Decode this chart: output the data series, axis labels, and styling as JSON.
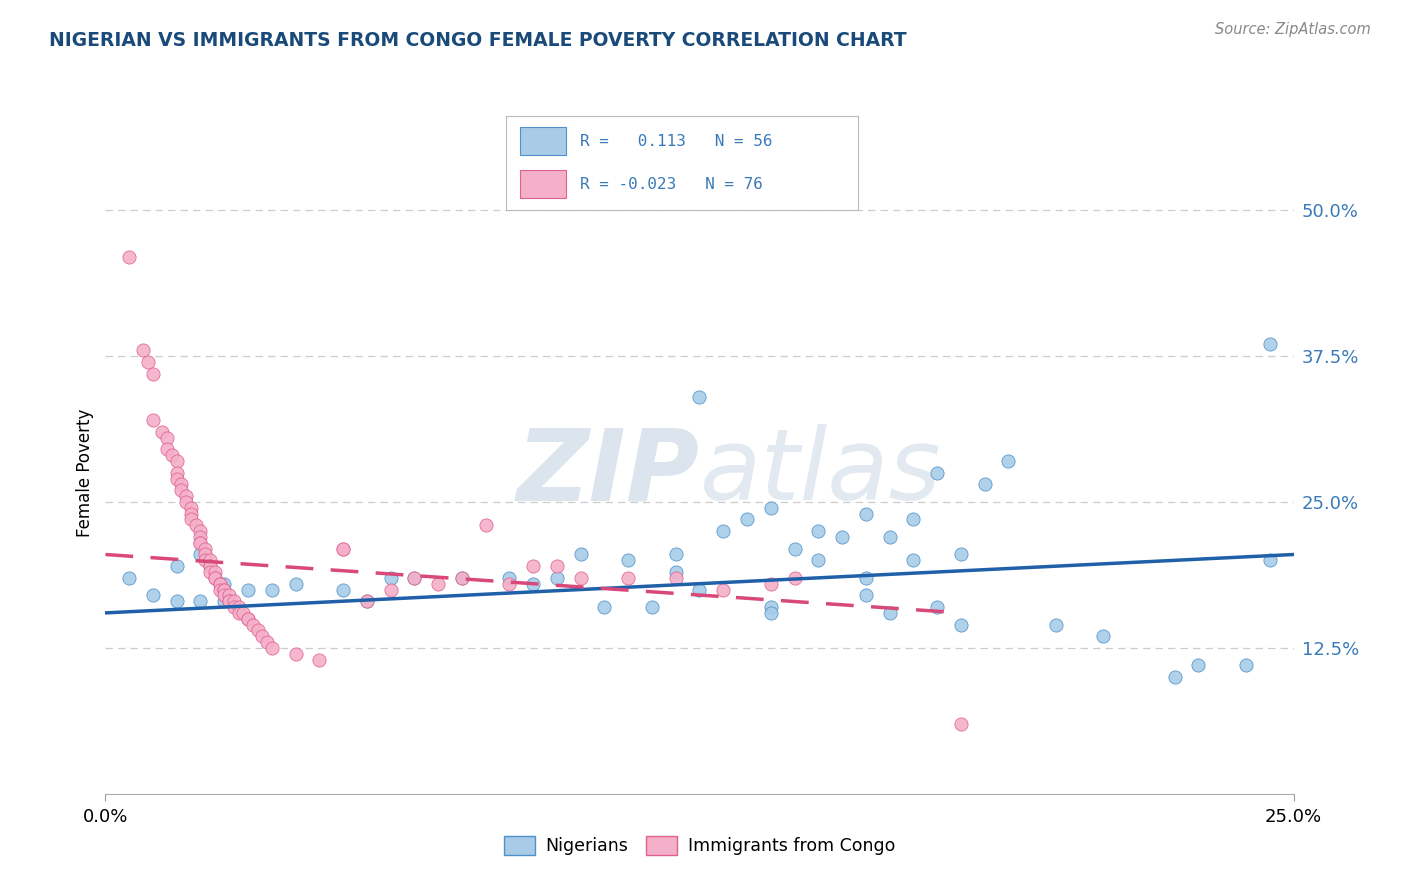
{
  "title": "NIGERIAN VS IMMIGRANTS FROM CONGO FEMALE POVERTY CORRELATION CHART",
  "source": "Source: ZipAtlas.com",
  "ylabel": "Female Poverty",
  "legend_bottom_blue": "Nigerians",
  "legend_bottom_pink": "Immigrants from Congo",
  "blue_color": "#a8cce8",
  "pink_color": "#f4b0c8",
  "blue_edge_color": "#5090c8",
  "pink_edge_color": "#e06090",
  "blue_line_color": "#2060a8",
  "pink_line_color": "#d84878",
  "label_color": "#3a7ab8",
  "watermark_color": "#c8d8e8",
  "blue_scatter": [
    [
      0.5,
      18.5
    ],
    [
      1.0,
      17.0
    ],
    [
      1.5,
      19.5
    ],
    [
      2.0,
      20.5
    ],
    [
      2.5,
      18.0
    ],
    [
      1.5,
      16.5
    ],
    [
      3.0,
      17.5
    ],
    [
      2.0,
      16.5
    ],
    [
      2.5,
      16.5
    ],
    [
      3.5,
      17.5
    ],
    [
      4.0,
      18.0
    ],
    [
      5.0,
      17.5
    ],
    [
      5.5,
      16.5
    ],
    [
      6.0,
      18.5
    ],
    [
      6.5,
      18.5
    ],
    [
      7.5,
      18.5
    ],
    [
      8.5,
      18.5
    ],
    [
      9.0,
      18.0
    ],
    [
      9.5,
      18.5
    ],
    [
      10.0,
      20.5
    ],
    [
      11.0,
      20.0
    ],
    [
      12.0,
      20.5
    ],
    [
      12.5,
      34.0
    ],
    [
      13.0,
      22.5
    ],
    [
      14.0,
      24.5
    ],
    [
      15.0,
      22.5
    ],
    [
      16.0,
      24.0
    ],
    [
      17.0,
      23.5
    ],
    [
      15.5,
      22.0
    ],
    [
      16.5,
      22.0
    ],
    [
      17.5,
      27.5
    ],
    [
      18.5,
      26.5
    ],
    [
      19.0,
      28.5
    ],
    [
      14.5,
      21.0
    ],
    [
      13.5,
      23.5
    ],
    [
      15.0,
      20.0
    ],
    [
      16.0,
      18.5
    ],
    [
      17.0,
      20.0
    ],
    [
      18.0,
      20.5
    ],
    [
      12.0,
      19.0
    ],
    [
      10.5,
      16.0
    ],
    [
      11.5,
      16.0
    ],
    [
      12.5,
      17.5
    ],
    [
      14.0,
      16.0
    ],
    [
      16.0,
      17.0
    ],
    [
      17.5,
      16.0
    ],
    [
      14.0,
      15.5
    ],
    [
      16.5,
      15.5
    ],
    [
      18.0,
      14.5
    ],
    [
      20.0,
      14.5
    ],
    [
      21.0,
      13.5
    ],
    [
      22.5,
      10.0
    ],
    [
      23.0,
      11.0
    ],
    [
      24.0,
      11.0
    ],
    [
      24.5,
      38.5
    ],
    [
      24.5,
      20.0
    ]
  ],
  "pink_scatter": [
    [
      0.5,
      46.0
    ],
    [
      0.8,
      38.0
    ],
    [
      0.9,
      37.0
    ],
    [
      1.0,
      36.0
    ],
    [
      1.0,
      32.0
    ],
    [
      1.2,
      31.0
    ],
    [
      1.3,
      30.5
    ],
    [
      1.3,
      29.5
    ],
    [
      1.4,
      29.0
    ],
    [
      1.5,
      28.5
    ],
    [
      1.5,
      27.5
    ],
    [
      1.5,
      27.0
    ],
    [
      1.6,
      26.5
    ],
    [
      1.6,
      26.0
    ],
    [
      1.7,
      25.5
    ],
    [
      1.7,
      25.0
    ],
    [
      1.8,
      24.5
    ],
    [
      1.8,
      24.0
    ],
    [
      1.8,
      23.5
    ],
    [
      1.9,
      23.0
    ],
    [
      2.0,
      22.5
    ],
    [
      2.0,
      22.0
    ],
    [
      2.0,
      21.5
    ],
    [
      2.0,
      21.5
    ],
    [
      2.1,
      21.0
    ],
    [
      2.1,
      20.5
    ],
    [
      2.1,
      20.0
    ],
    [
      2.2,
      20.0
    ],
    [
      2.2,
      19.5
    ],
    [
      2.2,
      19.5
    ],
    [
      2.2,
      19.0
    ],
    [
      2.3,
      19.0
    ],
    [
      2.3,
      18.5
    ],
    [
      2.3,
      18.5
    ],
    [
      2.4,
      18.0
    ],
    [
      2.4,
      18.0
    ],
    [
      2.4,
      17.5
    ],
    [
      2.5,
      17.5
    ],
    [
      2.5,
      17.5
    ],
    [
      2.5,
      17.0
    ],
    [
      2.6,
      17.0
    ],
    [
      2.6,
      16.5
    ],
    [
      2.6,
      16.5
    ],
    [
      2.7,
      16.5
    ],
    [
      2.7,
      16.0
    ],
    [
      2.8,
      16.0
    ],
    [
      2.8,
      15.5
    ],
    [
      2.9,
      15.5
    ],
    [
      3.0,
      15.0
    ],
    [
      3.0,
      15.0
    ],
    [
      3.1,
      14.5
    ],
    [
      3.2,
      14.0
    ],
    [
      3.3,
      13.5
    ],
    [
      3.4,
      13.0
    ],
    [
      3.5,
      12.5
    ],
    [
      4.0,
      12.0
    ],
    [
      4.5,
      11.5
    ],
    [
      5.0,
      21.0
    ],
    [
      5.5,
      16.5
    ],
    [
      6.0,
      17.5
    ],
    [
      6.5,
      18.5
    ],
    [
      7.0,
      18.0
    ],
    [
      7.5,
      18.5
    ],
    [
      8.0,
      23.0
    ],
    [
      8.5,
      18.0
    ],
    [
      9.0,
      19.5
    ],
    [
      9.5,
      19.5
    ],
    [
      10.0,
      18.5
    ],
    [
      11.0,
      18.5
    ],
    [
      12.0,
      18.5
    ],
    [
      13.0,
      17.5
    ],
    [
      14.0,
      18.0
    ],
    [
      14.5,
      18.5
    ],
    [
      18.0,
      6.0
    ],
    [
      5.0,
      21.0
    ]
  ],
  "xlim": [
    0,
    25
  ],
  "ylim": [
    0,
    55
  ],
  "right_ytick_vals": [
    12.5,
    25.0,
    37.5,
    50.0
  ],
  "right_ytick_labels": [
    "12.5%",
    "25.0%",
    "37.5%",
    "50.0%"
  ],
  "xtick_vals": [
    0,
    25
  ],
  "xtick_labels": [
    "0.0%",
    "25.0%"
  ],
  "blue_trend_x": [
    0,
    25
  ],
  "blue_trend_y": [
    15.5,
    20.5
  ],
  "pink_trend_x": [
    0,
    18
  ],
  "pink_trend_y": [
    20.5,
    15.5
  ],
  "background_color": "#ffffff",
  "grid_color": "#cccccc",
  "title_color": "#1a4a7a"
}
